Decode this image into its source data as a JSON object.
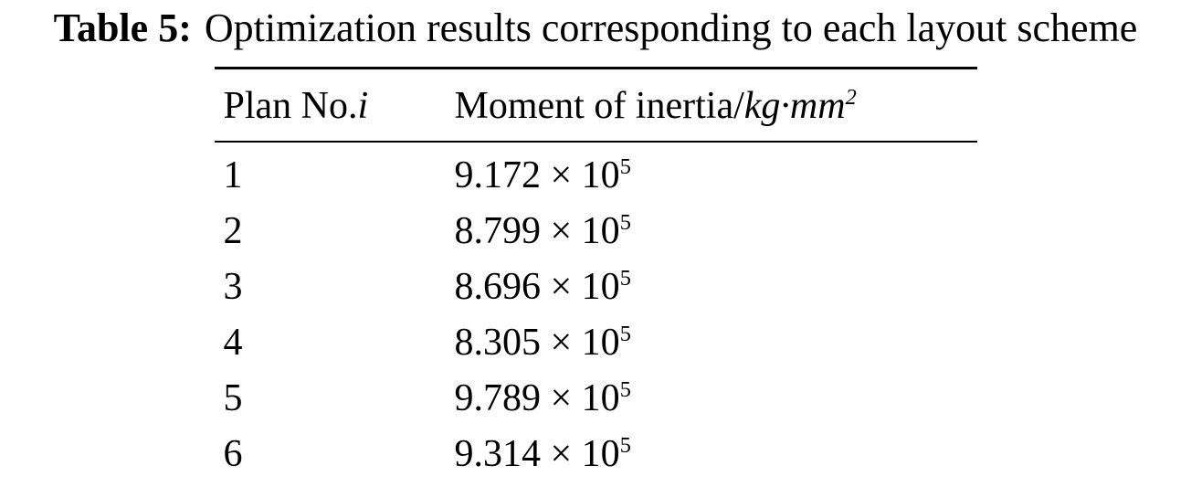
{
  "caption": {
    "label": "Table 5:",
    "text": "Optimization results corresponding to each layout scheme"
  },
  "table": {
    "header": {
      "plan_prefix": "Plan No.",
      "plan_italic": "i",
      "moment_prefix": "Moment of inertia/",
      "moment_italic": "kg·mm",
      "moment_sup": "2"
    },
    "rows": [
      {
        "no": "1",
        "value": "9.172 × 10",
        "sup": "5"
      },
      {
        "no": "2",
        "value": "8.799 × 10",
        "sup": "5"
      },
      {
        "no": "3",
        "value": "8.696 × 10",
        "sup": "5"
      },
      {
        "no": "4",
        "value": "8.305 × 10",
        "sup": "5"
      },
      {
        "no": "5",
        "value": "9.789 × 10",
        "sup": "5"
      },
      {
        "no": "6",
        "value": "9.314 × 10",
        "sup": "5"
      }
    ]
  },
  "chart_data": {
    "type": "table",
    "title": "Table 5: Optimization results corresponding to each layout scheme",
    "columns": [
      "Plan No.i",
      "Moment of inertia/kg·mm^2"
    ],
    "rows_numeric": [
      {
        "plan_no": 1,
        "moment_of_inertia_kg_mm2": 917200
      },
      {
        "plan_no": 2,
        "moment_of_inertia_kg_mm2": 879900
      },
      {
        "plan_no": 3,
        "moment_of_inertia_kg_mm2": 869600
      },
      {
        "plan_no": 4,
        "moment_of_inertia_kg_mm2": 830500
      },
      {
        "plan_no": 5,
        "moment_of_inertia_kg_mm2": 978900
      },
      {
        "plan_no": 6,
        "moment_of_inertia_kg_mm2": 931400
      }
    ]
  }
}
